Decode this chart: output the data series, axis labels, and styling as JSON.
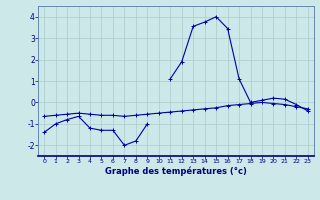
{
  "xlabel": "Graphe des températures (°c)",
  "background_color": "#cce8e8",
  "line_color": "#0000aa",
  "grid_color": "#aacccc",
  "hours": [
    0,
    1,
    2,
    3,
    4,
    5,
    6,
    7,
    8,
    9,
    10,
    11,
    12,
    13,
    14,
    15,
    16,
    17,
    18,
    19,
    20,
    21,
    22,
    23
  ],
  "curve_upper": [
    null,
    null,
    null,
    null,
    null,
    null,
    null,
    null,
    null,
    null,
    null,
    1.1,
    1.9,
    3.55,
    3.75,
    4.0,
    3.45,
    1.1,
    0.0,
    0.1,
    0.2,
    0.15,
    -0.1,
    -0.4
  ],
  "curve_mid": [
    -0.65,
    -0.6,
    -0.55,
    -0.5,
    -0.55,
    -0.6,
    -0.6,
    -0.65,
    -0.6,
    -0.55,
    -0.5,
    -0.45,
    -0.4,
    -0.35,
    -0.3,
    -0.25,
    -0.15,
    -0.1,
    -0.05,
    0.0,
    -0.05,
    -0.1,
    -0.2,
    -0.3
  ],
  "curve_lower": [
    -1.4,
    -1.0,
    -0.8,
    -0.65,
    -1.2,
    -1.3,
    -1.3,
    -2.0,
    -1.8,
    -1.0,
    null,
    null,
    null,
    null,
    null,
    null,
    null,
    null,
    null,
    null,
    null,
    null,
    null,
    null
  ],
  "ylim": [
    -2.5,
    4.5
  ],
  "yticks": [
    -2,
    -1,
    0,
    1,
    2,
    3,
    4
  ],
  "xticks": [
    0,
    1,
    2,
    3,
    4,
    5,
    6,
    7,
    8,
    9,
    10,
    11,
    12,
    13,
    14,
    15,
    16,
    17,
    18,
    19,
    20,
    21,
    22,
    23
  ],
  "figsize": [
    3.2,
    2.0
  ],
  "dpi": 100
}
